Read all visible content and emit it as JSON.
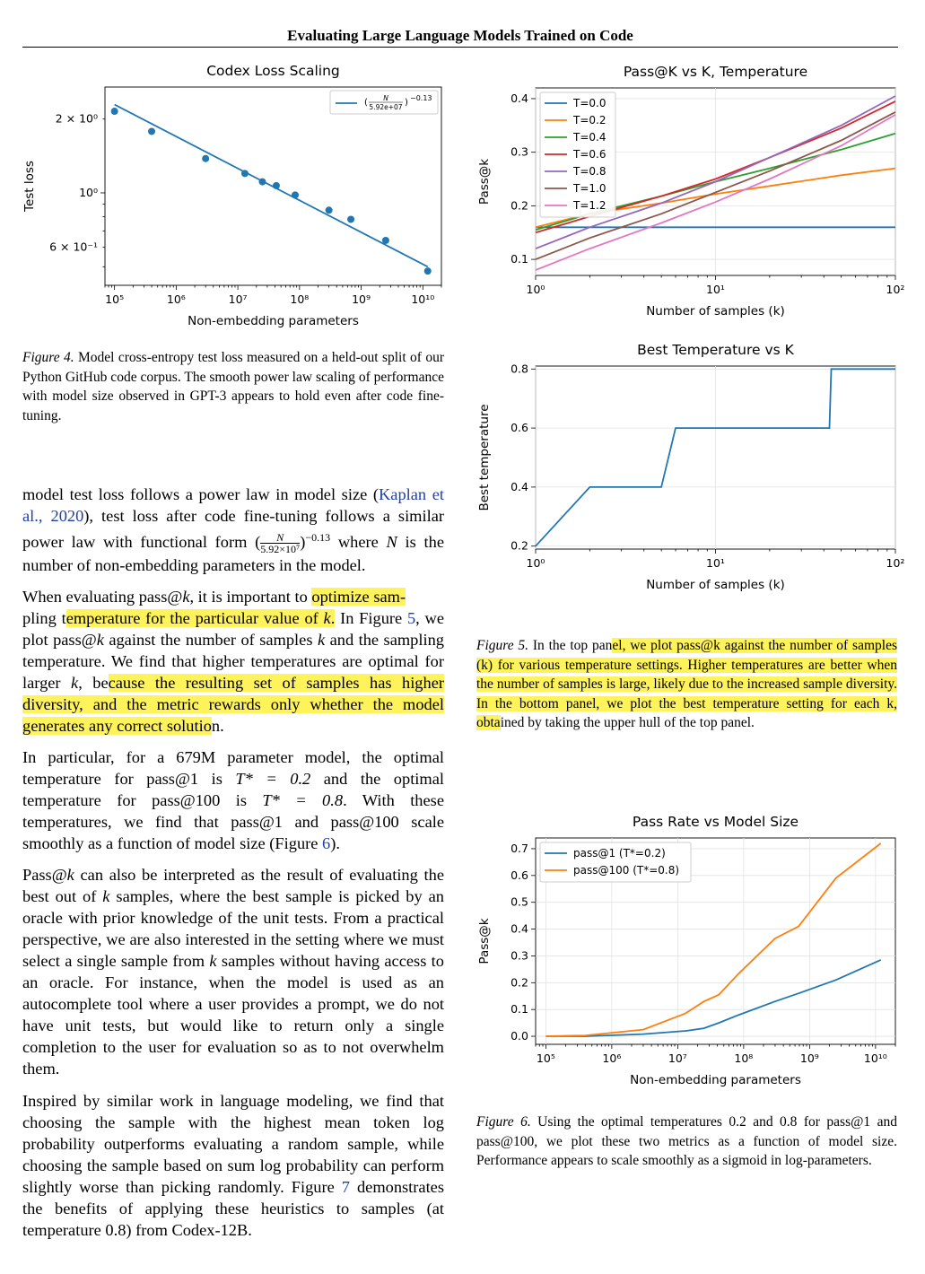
{
  "header": {
    "running_title": "Evaluating Large Language Models Trained on Code"
  },
  "figures": {
    "fig4": {
      "chart_data": {
        "type": "scatter",
        "title": "Codex Loss Scaling",
        "xlabel": "Non-embedding parameters",
        "ylabel": "Test loss",
        "xscale": "log",
        "yscale": "log",
        "xlim": [
          70000,
          20000000000
        ],
        "ylim": [
          0.42,
          2.7
        ],
        "x_ticks": [
          "10⁵",
          "10⁶",
          "10⁷",
          "10⁸",
          "10⁹",
          "10¹⁰"
        ],
        "y_ticks": [
          "2 × 10⁰",
          "10⁰",
          "6 × 10⁻¹"
        ],
        "points": [
          {
            "x": 100000,
            "y": 2.15
          },
          {
            "x": 400000,
            "y": 1.78
          },
          {
            "x": 3000000,
            "y": 1.38
          },
          {
            "x": 13000000,
            "y": 1.2
          },
          {
            "x": 25000000,
            "y": 1.11
          },
          {
            "x": 42000000,
            "y": 1.07
          },
          {
            "x": 85000000,
            "y": 0.98
          },
          {
            "x": 300000000,
            "y": 0.85
          },
          {
            "x": 680000000,
            "y": 0.78
          },
          {
            "x": 2500000000,
            "y": 0.64
          },
          {
            "x": 12000000000,
            "y": 0.48
          }
        ],
        "fit_line": {
          "name": "(N / 5.92e+07)^-0.13",
          "x": [
            100000,
            12000000000
          ],
          "y": [
            2.29,
            0.5
          ]
        },
        "legend_label_parts": {
          "num": "N",
          "den": "5.92e+07",
          "exp": "−0.13"
        },
        "legend": "top-right",
        "colors": {
          "series": "#1f77b4"
        }
      }
    },
    "fig5_top": {
      "chart_data": {
        "type": "line",
        "title": "Pass@K vs K, Temperature",
        "xlabel": "Number of samples (k)",
        "ylabel": "Pass@k",
        "xscale": "log",
        "xlim": [
          1,
          100
        ],
        "ylim": [
          0.07,
          0.42
        ],
        "x_ticks": [
          "10⁰",
          "10¹",
          "10²"
        ],
        "y_ticks": [
          "0.1",
          "0.2",
          "0.3",
          "0.4"
        ],
        "x": [
          1,
          2,
          5,
          10,
          20,
          50,
          100
        ],
        "series": [
          {
            "name": "T=0.0",
            "color": "#1f77b4",
            "values": [
              0.16,
              0.16,
              0.16,
              0.16,
              0.16,
              0.16,
              0.16
            ]
          },
          {
            "name": "T=0.2",
            "color": "#ff7f0e",
            "values": [
              0.16,
              0.185,
              0.205,
              0.222,
              0.237,
              0.257,
              0.27
            ]
          },
          {
            "name": "T=0.4",
            "color": "#2ca02c",
            "values": [
              0.155,
              0.185,
              0.218,
              0.245,
              0.27,
              0.305,
              0.335
            ]
          },
          {
            "name": "T=0.6",
            "color": "#d62728",
            "values": [
              0.15,
              0.18,
              0.218,
              0.25,
              0.29,
              0.345,
              0.395
            ]
          },
          {
            "name": "T=0.8",
            "color": "#9467bd",
            "values": [
              0.12,
              0.16,
              0.205,
              0.245,
              0.29,
              0.35,
              0.405
            ]
          },
          {
            "name": "T=1.0",
            "color": "#8c564b",
            "values": [
              0.1,
              0.14,
              0.185,
              0.225,
              0.265,
              0.322,
              0.375
            ]
          },
          {
            "name": "T=1.2",
            "color": "#e377c2",
            "values": [
              0.08,
              0.12,
              0.168,
              0.207,
              0.25,
              0.312,
              0.37
            ]
          }
        ],
        "legend": "top-left"
      }
    },
    "fig5_bottom": {
      "chart_data": {
        "type": "line",
        "title": "Best Temperature vs K",
        "xlabel": "Number of samples (k)",
        "ylabel": "Best temperature",
        "xscale": "log",
        "xlim": [
          1,
          100
        ],
        "ylim": [
          0.19,
          0.81
        ],
        "x_ticks": [
          "10⁰",
          "10¹",
          "10²"
        ],
        "y_ticks": [
          "0.2",
          "0.4",
          "0.6",
          "0.8"
        ],
        "x": [
          1,
          2,
          5,
          6,
          43,
          44,
          100
        ],
        "values": [
          0.2,
          0.4,
          0.4,
          0.6,
          0.6,
          0.8,
          0.8
        ],
        "colors": {
          "series": "#1f77b4"
        }
      }
    },
    "fig6": {
      "chart_data": {
        "type": "line",
        "title": "Pass Rate vs Model Size",
        "xlabel": "Non-embedding parameters",
        "ylabel": "Pass@k",
        "xscale": "log",
        "xlim": [
          70000,
          20000000000
        ],
        "ylim": [
          -0.03,
          0.74
        ],
        "x_ticks": [
          "10⁵",
          "10⁶",
          "10⁷",
          "10⁸",
          "10⁹",
          "10¹⁰"
        ],
        "y_ticks": [
          "0.0",
          "0.1",
          "0.2",
          "0.3",
          "0.4",
          "0.5",
          "0.6",
          "0.7"
        ],
        "x": [
          100000,
          400000,
          3000000,
          13000000,
          25000000,
          42000000,
          85000000,
          300000000,
          680000000,
          2500000000,
          12000000000
        ],
        "series": [
          {
            "name": "pass@1 (T*=0.2)",
            "color": "#1f77b4",
            "values": [
              0.0,
              0.0,
              0.008,
              0.02,
              0.03,
              0.05,
              0.08,
              0.13,
              0.16,
              0.21,
              0.285
            ]
          },
          {
            "name": "pass@100 (T*=0.8)",
            "color": "#ff7f0e",
            "values": [
              0.0,
              0.003,
              0.025,
              0.085,
              0.13,
              0.155,
              0.235,
              0.365,
              0.41,
              0.59,
              0.72
            ]
          }
        ],
        "legend": "top-left"
      }
    }
  },
  "captions": {
    "fig4": {
      "label": "Figure 4.",
      "text": " Model cross-entropy test loss measured on a held-out split of our Python GitHub code corpus. The smooth power law scaling of performance with model size observed in GPT-3 appears to hold even after code fine-tuning."
    },
    "fig5": {
      "label": "Figure 5.",
      "t1": " In the top pan",
      "hl": "el, we plot pass@k against the number of samples (k) for various temperature settings. Higher temperatures are better when the number of samples is large, likely due to the increased sample diversity. In the bottom panel, we plot the best temperature setting for each k, obta",
      "t2": "ined by taking the upper hull of the top panel."
    },
    "fig6": {
      "label": "Figure 6.",
      "text": " Using the optimal temperatures 0.2 and 0.8 for pass@1 and pass@100, we plot these two metrics as a function of model size. Performance appears to scale smoothly as a sigmoid in log-parameters."
    }
  },
  "body": {
    "p1": {
      "a": "model test loss follows a power law in model size (",
      "cite": "Kaplan et al., 2020",
      "b": "), test loss after code fine-tuning follows a similar power law with functional form (",
      "frac_num": "N",
      "frac_den": "5.92×10⁷",
      "exp": "−0.13",
      "c": " where ",
      "var": "N",
      "d": " is the number of non-embedding parameters in the model."
    },
    "p2": {
      "a": "When evaluating pass@",
      "k": "k",
      "b": ", it is important to ",
      "hl1": "optimize sam-",
      "c": "pling t",
      "hl2": "emperature for the particular value of ",
      "hl2k": "k",
      "hl2end": ".",
      "d": " In Figure ",
      "ref": "5",
      "e": ", we plot pass@",
      "f": " against the number of samples ",
      "g": " and the sampling temperature. We find that higher temperatures are optimal for larger ",
      "h": ", be",
      "hl3": "cause the resulting set of samples has higher diversity, and the metric rewards only whether the model generates any correct solutio",
      "i": "n."
    },
    "p3": {
      "a": "In particular, for a 679M parameter model, the optimal temperature for pass@1 is ",
      "t1": "T* = 0.2",
      "b": " and the optimal temperature for pass@100 is ",
      "t2": "T* = 0.8",
      "c": ". With these temperatures, we find that pass@1 and pass@100 scale smoothly as a function of model size (Figure ",
      "ref": "6",
      "d": ")."
    },
    "p4": {
      "a": "Pass@",
      "k": "k",
      "b": " can also be interpreted as the result of evaluating the best out of ",
      "c": " samples, where the best sample is picked by an oracle with prior knowledge of the unit tests. From a practical perspective, we are also interested in the setting where we must select a single sample from ",
      "d": " samples without having access to an oracle. For instance, when the model is used as an autocomplete tool where a user provides a prompt, we do not have unit tests, but would like to return only a single completion to the user for evaluation so as to not overwhelm them."
    },
    "p5": {
      "a": "Inspired by similar work in language modeling, we find that choosing the sample with the highest mean token log probability outperforms evaluating a random sample, while choosing the sample based on sum log probability can perform slightly worse than picking randomly. Figure ",
      "ref": "7",
      "b": " demonstrates the benefits of applying these heuristics to samples (at temperature 0.8) from Codex-12B."
    }
  }
}
